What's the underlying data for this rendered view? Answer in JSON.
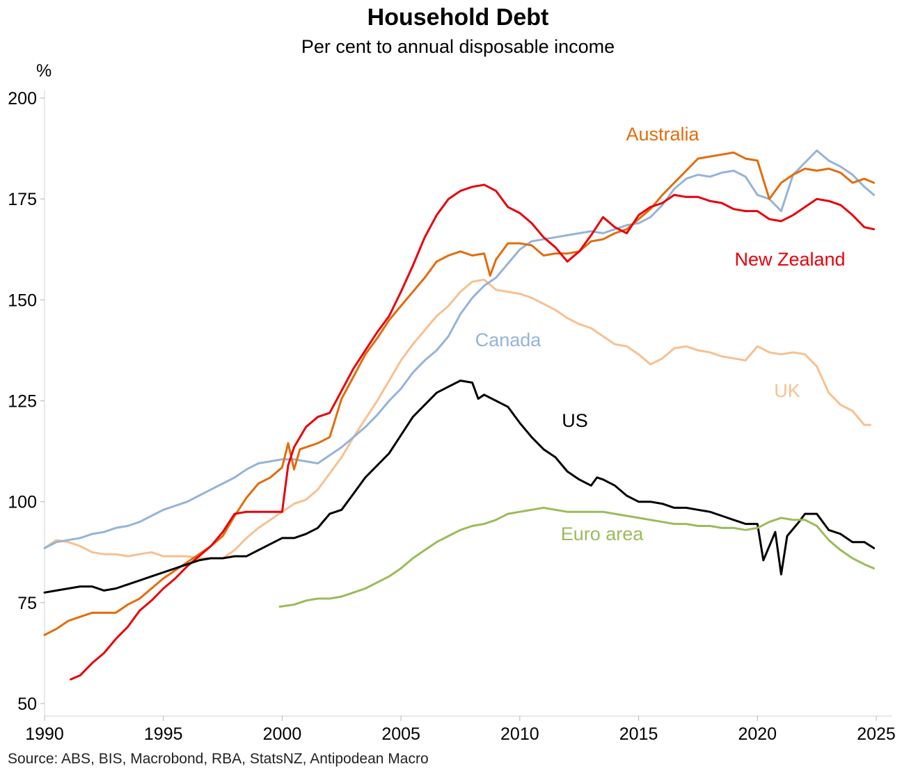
{
  "chart_data": {
    "type": "line",
    "title": "Household Debt",
    "subtitle": "Per cent to annual disposable income",
    "ylabel": "%",
    "source": "Source: ABS, BIS, Macrobond, RBA, StatsNZ, Antipodean Macro",
    "xlim": [
      1990,
      2025
    ],
    "ylim": [
      50,
      200
    ],
    "x_ticks": [
      "1990",
      "1995",
      "2000",
      "2005",
      "2010",
      "2015",
      "2020",
      "2025"
    ],
    "y_ticks": [
      "50",
      "75",
      "100",
      "125",
      "150",
      "175",
      "200"
    ],
    "series": [
      {
        "name": "UK",
        "color": "#f8c08f",
        "x": [
          1990.0,
          1990.5,
          1991.0,
          1991.5,
          1992.0,
          1992.5,
          1993.0,
          1993.5,
          1994.0,
          1994.5,
          1995.0,
          1995.5,
          1996.0,
          1996.5,
          1997.0,
          1997.5,
          1998.0,
          1998.5,
          1999.0,
          1999.5,
          2000.0,
          2000.5,
          2001.0,
          2001.5,
          2002.0,
          2002.5,
          2003.0,
          2003.5,
          2004.0,
          2004.5,
          2005.0,
          2005.5,
          2006.0,
          2006.5,
          2007.0,
          2007.5,
          2008.0,
          2008.5,
          2009.0,
          2009.5,
          2010.0,
          2010.5,
          2011.0,
          2011.5,
          2012.0,
          2012.5,
          2013.0,
          2013.5,
          2014.0,
          2014.5,
          2015.0,
          2015.5,
          2016.0,
          2016.5,
          2017.0,
          2017.5,
          2018.0,
          2018.5,
          2019.0,
          2019.5,
          2020.0,
          2020.5,
          2021.0,
          2021.5,
          2022.0,
          2022.5,
          2023.0,
          2023.5,
          2024.0,
          2024.5,
          2024.75
        ],
        "values": [
          88.5,
          90.5,
          90.0,
          89.0,
          87.5,
          87.0,
          87.0,
          86.5,
          87.0,
          87.5,
          86.5,
          86.5,
          86.5,
          86.0,
          86.0,
          86.0,
          88.0,
          91.0,
          93.5,
          95.5,
          97.5,
          99.5,
          100.5,
          103.0,
          107.0,
          111.0,
          116.0,
          120.5,
          125.0,
          130.0,
          135.0,
          139.0,
          142.5,
          146.0,
          148.5,
          152.0,
          154.5,
          155.0,
          152.5,
          152.0,
          151.5,
          150.5,
          149.0,
          147.5,
          145.5,
          144.0,
          143.0,
          141.0,
          139.0,
          138.5,
          136.5,
          134.0,
          135.5,
          138.0,
          138.5,
          137.5,
          137.0,
          136.0,
          135.5,
          135.0,
          138.5,
          137.0,
          136.5,
          137.0,
          136.5,
          133.5,
          127.0,
          124.0,
          122.5,
          119.0,
          119.0
        ]
      },
      {
        "name": "Canada",
        "color": "#95b3d7",
        "x": [
          1990.0,
          1990.5,
          1991.0,
          1991.5,
          1992.0,
          1992.5,
          1993.0,
          1993.5,
          1994.0,
          1994.5,
          1995.0,
          1995.5,
          1996.0,
          1996.5,
          1997.0,
          1997.5,
          1998.0,
          1998.5,
          1999.0,
          1999.5,
          2000.0,
          2000.5,
          2001.0,
          2001.5,
          2002.0,
          2002.5,
          2003.0,
          2003.5,
          2004.0,
          2004.5,
          2005.0,
          2005.5,
          2006.0,
          2006.5,
          2007.0,
          2007.5,
          2008.0,
          2008.5,
          2009.0,
          2009.5,
          2010.0,
          2010.5,
          2011.0,
          2011.5,
          2012.0,
          2012.5,
          2013.0,
          2013.5,
          2014.0,
          2014.5,
          2015.0,
          2015.5,
          2016.0,
          2016.5,
          2017.0,
          2017.5,
          2018.0,
          2018.5,
          2019.0,
          2019.5,
          2020.0,
          2020.5,
          2021.0,
          2021.5,
          2022.0,
          2022.5,
          2023.0,
          2023.5,
          2024.0,
          2024.5,
          2024.9
        ],
        "values": [
          88.5,
          90.0,
          90.5,
          91.0,
          92.0,
          92.5,
          93.5,
          94.0,
          95.0,
          96.5,
          98.0,
          99.0,
          100.0,
          101.5,
          103.0,
          104.5,
          106.0,
          108.0,
          109.5,
          110.0,
          110.5,
          110.5,
          110.0,
          109.5,
          111.5,
          113.5,
          116.0,
          118.5,
          121.5,
          125.0,
          128.0,
          132.0,
          135.0,
          137.5,
          141.0,
          146.5,
          150.5,
          153.5,
          155.5,
          159.0,
          162.5,
          164.5,
          165.0,
          165.5,
          166.0,
          166.5,
          167.0,
          166.5,
          167.5,
          168.5,
          169.0,
          170.5,
          173.5,
          177.5,
          180.0,
          181.0,
          180.5,
          181.5,
          182.0,
          180.5,
          176.0,
          175.0,
          172.0,
          181.0,
          184.0,
          187.0,
          184.5,
          183.0,
          181.0,
          178.0,
          176.0
        ]
      },
      {
        "name": "Australia",
        "color": "#e36c0a",
        "x": [
          1990.0,
          1990.5,
          1991.0,
          1991.5,
          1992.0,
          1992.5,
          1993.0,
          1993.5,
          1994.0,
          1994.5,
          1995.0,
          1995.5,
          1996.0,
          1996.5,
          1997.0,
          1997.5,
          1998.0,
          1998.5,
          1999.0,
          1999.5,
          2000.0,
          2000.25,
          2000.5,
          2000.75,
          2001.0,
          2001.5,
          2002.0,
          2002.5,
          2003.0,
          2003.5,
          2004.0,
          2004.5,
          2005.0,
          2005.5,
          2006.0,
          2006.5,
          2007.0,
          2007.5,
          2008.0,
          2008.5,
          2008.75,
          2009.0,
          2009.5,
          2010.0,
          2010.5,
          2011.0,
          2011.5,
          2012.0,
          2012.5,
          2013.0,
          2013.5,
          2014.0,
          2014.5,
          2015.0,
          2015.5,
          2016.0,
          2016.5,
          2017.0,
          2017.5,
          2018.0,
          2018.5,
          2019.0,
          2019.5,
          2020.0,
          2020.5,
          2021.0,
          2021.5,
          2022.0,
          2022.5,
          2023.0,
          2023.5,
          2024.0,
          2024.5,
          2024.9
        ],
        "values": [
          67.0,
          68.5,
          70.5,
          71.5,
          72.5,
          72.5,
          72.5,
          74.5,
          76.0,
          78.5,
          81.0,
          83.0,
          85.0,
          87.0,
          89.0,
          91.5,
          96.5,
          101.0,
          104.5,
          106.0,
          108.5,
          114.5,
          108.0,
          113.0,
          113.5,
          114.5,
          116.0,
          125.5,
          131.0,
          136.5,
          140.5,
          145.0,
          148.5,
          152.0,
          155.5,
          159.5,
          161.0,
          162.0,
          161.0,
          161.5,
          156.0,
          160.0,
          164.0,
          164.0,
          163.5,
          161.0,
          161.5,
          161.5,
          162.0,
          164.5,
          165.0,
          166.5,
          167.5,
          170.0,
          172.5,
          176.0,
          179.0,
          182.0,
          185.0,
          185.5,
          186.0,
          186.5,
          185.0,
          184.5,
          175.0,
          179.0,
          181.0,
          182.5,
          182.0,
          182.5,
          181.5,
          179.0,
          180.0,
          179.0
        ]
      },
      {
        "name": "New Zealand",
        "color": "#e8000b",
        "x": [
          1991.1,
          1991.5,
          1992.0,
          1992.5,
          1993.0,
          1993.5,
          1994.0,
          1994.5,
          1995.0,
          1995.5,
          1996.0,
          1996.5,
          1997.0,
          1997.5,
          1998.0,
          1998.5,
          1999.0,
          1999.5,
          2000.0,
          2000.25,
          2000.5,
          2001.0,
          2001.5,
          2002.0,
          2002.5,
          2003.0,
          2003.5,
          2004.0,
          2004.5,
          2005.0,
          2005.5,
          2006.0,
          2006.5,
          2007.0,
          2007.5,
          2008.0,
          2008.5,
          2009.0,
          2009.5,
          2010.0,
          2010.5,
          2011.0,
          2011.5,
          2012.0,
          2012.5,
          2013.0,
          2013.5,
          2014.0,
          2014.5,
          2015.0,
          2015.5,
          2016.0,
          2016.5,
          2017.0,
          2017.5,
          2018.0,
          2018.5,
          2019.0,
          2019.5,
          2020.0,
          2020.5,
          2021.0,
          2021.5,
          2022.0,
          2022.5,
          2023.0,
          2023.5,
          2024.0,
          2024.5,
          2024.9
        ],
        "values": [
          56.0,
          57.0,
          60.0,
          62.5,
          66.0,
          69.0,
          73.0,
          75.5,
          78.5,
          81.0,
          84.0,
          86.5,
          89.0,
          92.5,
          97.0,
          97.5,
          97.5,
          97.5,
          97.5,
          109.0,
          113.5,
          118.5,
          121.0,
          122.0,
          127.5,
          133.0,
          137.5,
          142.0,
          146.0,
          152.0,
          158.5,
          165.5,
          171.0,
          175.0,
          177.0,
          178.0,
          178.5,
          177.0,
          173.0,
          171.5,
          169.0,
          165.5,
          163.0,
          159.5,
          162.0,
          166.0,
          170.5,
          168.0,
          166.5,
          171.0,
          173.0,
          174.0,
          176.0,
          175.5,
          175.5,
          174.5,
          174.0,
          172.5,
          172.0,
          172.0,
          170.0,
          169.5,
          171.0,
          173.0,
          175.0,
          174.5,
          173.5,
          171.0,
          168.0,
          167.5
        ]
      },
      {
        "name": "US",
        "color": "#000000",
        "x": [
          1990.0,
          1990.5,
          1991.0,
          1991.5,
          1992.0,
          1992.5,
          1993.0,
          1993.5,
          1994.0,
          1994.5,
          1995.0,
          1995.5,
          1996.0,
          1996.5,
          1997.0,
          1997.5,
          1998.0,
          1998.5,
          1999.0,
          1999.5,
          2000.0,
          2000.5,
          2001.0,
          2001.5,
          2002.0,
          2002.5,
          2003.0,
          2003.5,
          2004.0,
          2004.5,
          2005.0,
          2005.5,
          2006.0,
          2006.5,
          2007.0,
          2007.5,
          2008.0,
          2008.25,
          2008.5,
          2009.0,
          2009.5,
          2010.0,
          2010.5,
          2011.0,
          2011.5,
          2012.0,
          2012.5,
          2013.0,
          2013.25,
          2013.5,
          2014.0,
          2014.5,
          2015.0,
          2015.5,
          2016.0,
          2016.5,
          2017.0,
          2017.5,
          2018.0,
          2018.5,
          2019.0,
          2019.5,
          2020.0,
          2020.25,
          2020.75,
          2021.0,
          2021.25,
          2021.75,
          2022.0,
          2022.5,
          2023.0,
          2023.5,
          2024.0,
          2024.5,
          2024.9
        ],
        "values": [
          77.5,
          78.0,
          78.5,
          79.0,
          79.0,
          78.0,
          78.5,
          79.5,
          80.5,
          81.5,
          82.5,
          83.5,
          84.5,
          85.5,
          86.0,
          86.0,
          86.5,
          86.5,
          88.0,
          89.5,
          91.0,
          91.0,
          92.0,
          93.5,
          97.0,
          98.0,
          102.0,
          106.0,
          109.0,
          112.0,
          116.5,
          121.0,
          124.0,
          127.0,
          128.5,
          130.0,
          129.5,
          125.5,
          126.5,
          125.0,
          123.5,
          119.5,
          116.0,
          113.0,
          111.0,
          107.5,
          105.5,
          104.0,
          106.0,
          105.5,
          104.0,
          101.5,
          100.0,
          100.0,
          99.5,
          98.5,
          98.5,
          98.0,
          97.5,
          96.5,
          95.5,
          94.5,
          94.5,
          85.5,
          92.5,
          82.0,
          91.5,
          95.0,
          97.0,
          97.0,
          93.0,
          92.0,
          90.0,
          90.0,
          88.5
        ]
      },
      {
        "name": "Euro area",
        "color": "#9bbb59",
        "x": [
          1999.9,
          2000.5,
          2001.0,
          2001.5,
          2002.0,
          2002.5,
          2003.0,
          2003.5,
          2004.0,
          2004.5,
          2005.0,
          2005.5,
          2006.0,
          2006.5,
          2007.0,
          2007.5,
          2008.0,
          2008.5,
          2009.0,
          2009.5,
          2010.0,
          2010.5,
          2011.0,
          2011.5,
          2012.0,
          2012.5,
          2013.0,
          2013.5,
          2014.0,
          2014.5,
          2015.0,
          2015.5,
          2016.0,
          2016.5,
          2017.0,
          2017.5,
          2018.0,
          2018.5,
          2019.0,
          2019.5,
          2020.0,
          2020.5,
          2021.0,
          2021.5,
          2022.0,
          2022.5,
          2023.0,
          2023.5,
          2024.0,
          2024.5,
          2024.9
        ],
        "values": [
          74.0,
          74.5,
          75.5,
          76.0,
          76.0,
          76.5,
          77.5,
          78.5,
          80.0,
          81.5,
          83.5,
          86.0,
          88.0,
          90.0,
          91.5,
          93.0,
          94.0,
          94.5,
          95.5,
          97.0,
          97.5,
          98.0,
          98.5,
          98.0,
          97.5,
          97.5,
          97.5,
          97.5,
          97.0,
          96.5,
          96.0,
          95.5,
          95.0,
          94.5,
          94.5,
          94.0,
          94.0,
          93.5,
          93.5,
          93.0,
          93.5,
          95.0,
          96.0,
          95.5,
          95.5,
          94.0,
          90.5,
          88.0,
          86.0,
          84.5,
          83.5
        ]
      }
    ],
    "annotations": [
      {
        "text": "Australia",
        "series": "Australia"
      },
      {
        "text": "New Zealand",
        "series": "New Zealand"
      },
      {
        "text": "Canada",
        "series": "Canada"
      },
      {
        "text": "UK",
        "series": "UK"
      },
      {
        "text": "US",
        "series": "US"
      },
      {
        "text": "Euro area",
        "series": "Euro area"
      }
    ]
  }
}
